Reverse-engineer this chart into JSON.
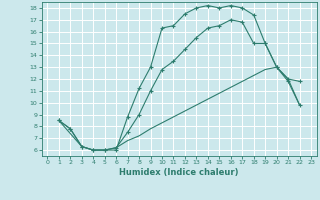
{
  "xlabel": "Humidex (Indice chaleur)",
  "bg_color": "#cce8ec",
  "grid_color": "#ffffff",
  "line_color": "#2e7d6e",
  "xlim": [
    -0.5,
    23.5
  ],
  "ylim": [
    5.5,
    18.5
  ],
  "xticks": [
    0,
    1,
    2,
    3,
    4,
    5,
    6,
    7,
    8,
    9,
    10,
    11,
    12,
    13,
    14,
    15,
    16,
    17,
    18,
    19,
    20,
    21,
    22,
    23
  ],
  "yticks": [
    6,
    7,
    8,
    9,
    10,
    11,
    12,
    13,
    14,
    15,
    16,
    17,
    18
  ],
  "line1_x": [
    1,
    2,
    3,
    4,
    5,
    6,
    7,
    8,
    9,
    10,
    11,
    12,
    13,
    14,
    15,
    16,
    17,
    18,
    19,
    20,
    21,
    22
  ],
  "line1_y": [
    8.5,
    7.8,
    6.3,
    6.0,
    6.0,
    6.0,
    8.8,
    11.2,
    13.0,
    16.3,
    16.5,
    17.5,
    18.0,
    18.2,
    18.0,
    18.2,
    18.0,
    17.4,
    15.0,
    13.0,
    12.0,
    11.8
  ],
  "line2_x": [
    1,
    2,
    3,
    4,
    5,
    6,
    7,
    8,
    9,
    10,
    11,
    12,
    13,
    14,
    15,
    16,
    17,
    18,
    19,
    20,
    21,
    22
  ],
  "line2_y": [
    8.5,
    7.8,
    6.3,
    6.0,
    6.0,
    6.2,
    7.5,
    9.0,
    11.0,
    12.8,
    13.5,
    14.5,
    15.5,
    16.3,
    16.5,
    17.0,
    16.8,
    15.0,
    15.0,
    13.0,
    11.8,
    9.8
  ],
  "line3_x": [
    1,
    3,
    4,
    5,
    6,
    7,
    8,
    9,
    10,
    11,
    12,
    13,
    14,
    15,
    16,
    17,
    18,
    19,
    20,
    21,
    22
  ],
  "line3_y": [
    8.5,
    6.3,
    6.0,
    6.0,
    6.2,
    6.8,
    7.2,
    7.8,
    8.3,
    8.8,
    9.3,
    9.8,
    10.3,
    10.8,
    11.3,
    11.8,
    12.3,
    12.8,
    13.0,
    12.0,
    9.8
  ]
}
